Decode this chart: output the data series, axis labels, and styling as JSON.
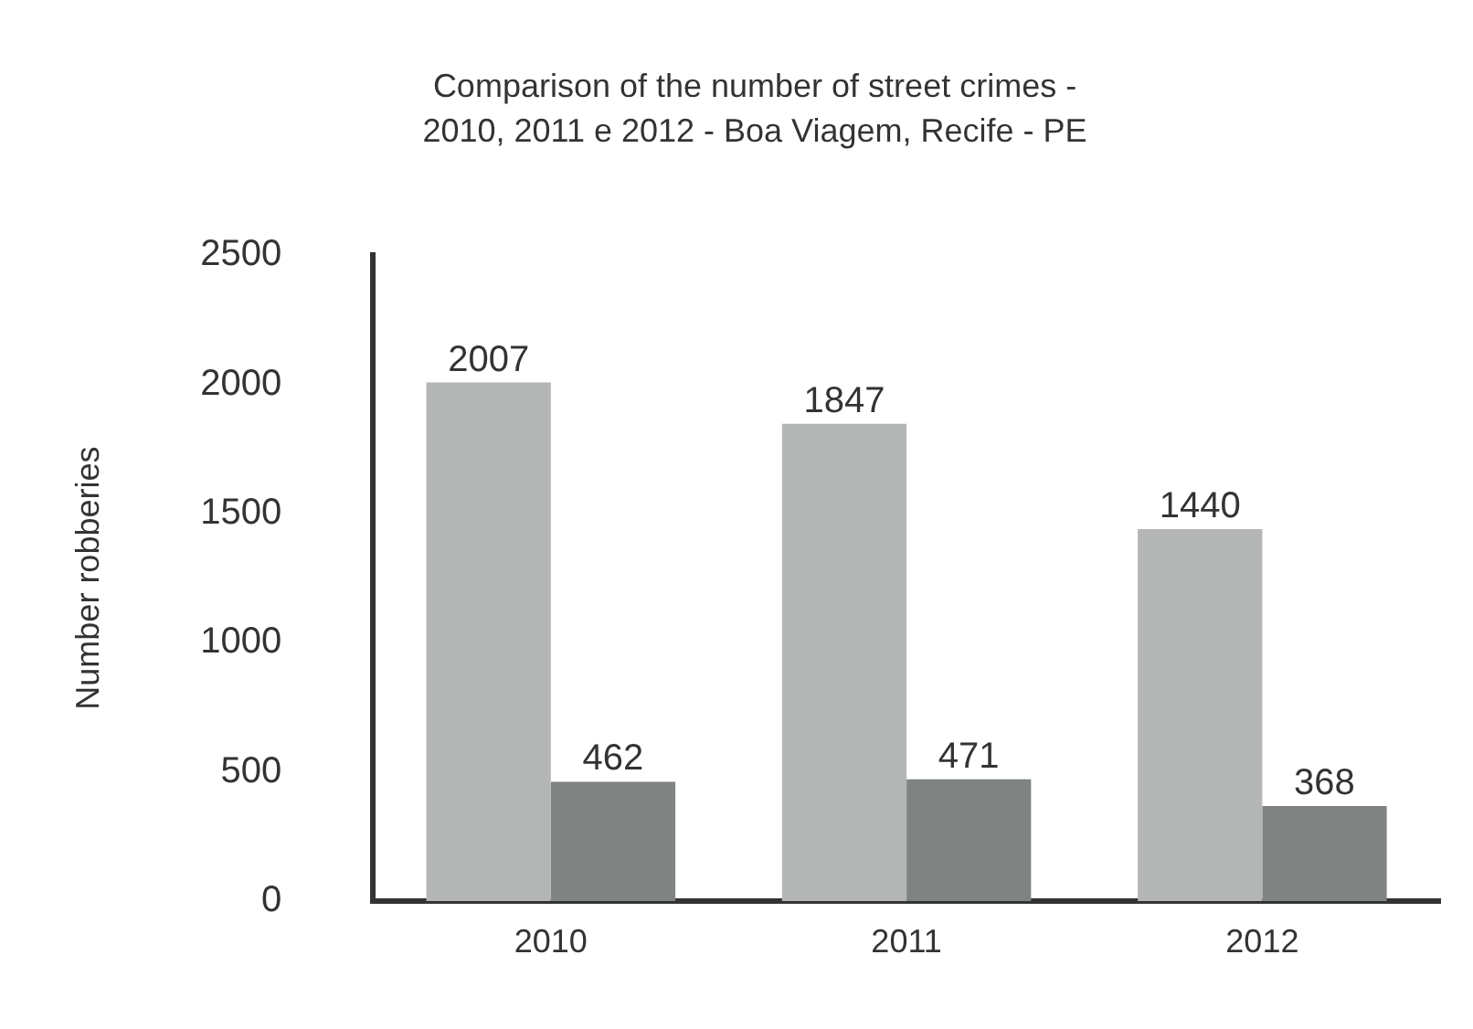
{
  "chart_data": {
    "type": "bar",
    "title": "Comparison of the number of street crimes -\n2010, 2011 e 2012 - Boa Viagem, Recife - PE",
    "ylabel": "Number robberies",
    "categories": [
      "2010",
      "2011",
      "2012"
    ],
    "series": [
      {
        "color": "#b3b6b5",
        "values": [
          2007,
          1847,
          1440
        ]
      },
      {
        "color": "#7f8482",
        "values": [
          462,
          471,
          368
        ]
      }
    ],
    "ylim": [
      0,
      2500
    ],
    "yticks": [
      0,
      500,
      1000,
      1500,
      2000,
      2500
    ],
    "grid": false,
    "legend": false,
    "data_labels": true
  }
}
